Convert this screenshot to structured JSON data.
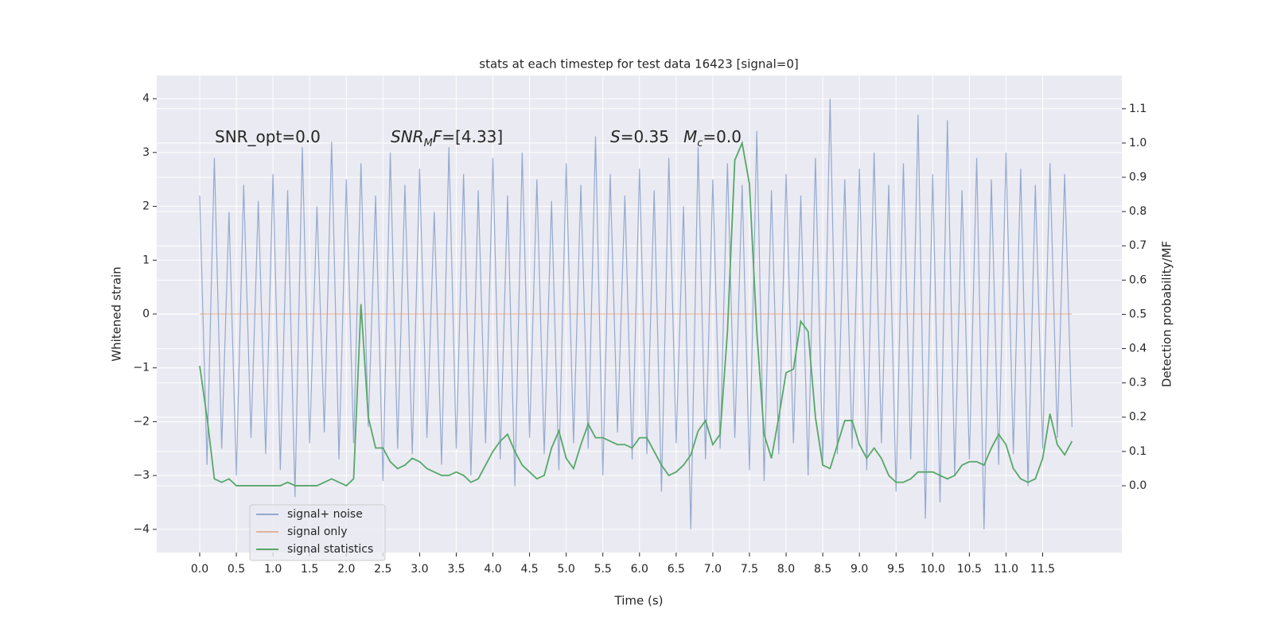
{
  "chart_data": {
    "type": "line",
    "title": "stats at each timestep for test data 16423 [signal=0]",
    "xlabel": "Time (s)",
    "ylabel": "Whitened strain",
    "y2label": "Detection probability/MF",
    "x": [
      0,
      0.1,
      0.2,
      0.3,
      0.4,
      0.5,
      0.6,
      0.7,
      0.8,
      0.9,
      1.0,
      1.1,
      1.2,
      1.3,
      1.4,
      1.5,
      1.6,
      1.7,
      1.8,
      1.9,
      2.0,
      2.1,
      2.2,
      2.3,
      2.4,
      2.5,
      2.6,
      2.7,
      2.8,
      2.9,
      3.0,
      3.1,
      3.2,
      3.3,
      3.4,
      3.5,
      3.6,
      3.7,
      3.8,
      3.9,
      4.0,
      4.1,
      4.2,
      4.3,
      4.4,
      4.5,
      4.6,
      4.7,
      4.8,
      4.9,
      5.0,
      5.1,
      5.2,
      5.3,
      5.4,
      5.5,
      5.6,
      5.7,
      5.8,
      5.9,
      6.0,
      6.1,
      6.2,
      6.3,
      6.4,
      6.5,
      6.6,
      6.7,
      6.8,
      6.9,
      7.0,
      7.1,
      7.2,
      7.3,
      7.4,
      7.5,
      7.6,
      7.7,
      7.8,
      7.9,
      8.0,
      8.1,
      8.2,
      8.3,
      8.4,
      8.5,
      8.6,
      8.7,
      8.8,
      8.9,
      9.0,
      9.1,
      9.2,
      9.3,
      9.4,
      9.5,
      9.6,
      9.7,
      9.8,
      9.9,
      10.0,
      10.1,
      10.2,
      10.3,
      10.4,
      10.5,
      10.6,
      10.7,
      10.8,
      10.9,
      11.0,
      11.1,
      11.2,
      11.3,
      11.4,
      11.5,
      11.6,
      11.7,
      11.8,
      11.9
    ],
    "series": [
      {
        "name": "signal+ noise",
        "color": "#4c72b0",
        "opacity": 0.55,
        "values": [
          2.2,
          -2.8,
          2.9,
          -2.5,
          1.9,
          -3.0,
          2.4,
          -2.3,
          2.1,
          -2.6,
          2.6,
          -2.9,
          2.3,
          -3.4,
          3.1,
          -2.4,
          2.0,
          -2.2,
          3.2,
          -2.7,
          2.5,
          -2.4,
          2.8,
          -2.1,
          2.2,
          -3.1,
          3.0,
          -2.5,
          2.4,
          -2.6,
          2.7,
          -2.3,
          1.9,
          -2.8,
          3.1,
          -2.5,
          2.6,
          -3.0,
          2.3,
          -2.4,
          2.9,
          -2.7,
          2.2,
          -3.2,
          3.0,
          -2.3,
          2.5,
          -2.6,
          2.1,
          -2.9,
          2.8,
          -2.4,
          2.4,
          -2.5,
          3.3,
          -3.0,
          2.6,
          -2.2,
          2.2,
          -2.7,
          2.7,
          -2.6,
          2.3,
          -3.3,
          2.9,
          -2.4,
          2.0,
          -4.0,
          3.1,
          -2.7,
          2.5,
          -2.5,
          2.8,
          -2.3,
          2.4,
          -2.9,
          3.4,
          -3.1,
          2.3,
          -2.6,
          2.6,
          -2.4,
          2.2,
          -3.0,
          2.9,
          -2.8,
          4.0,
          -2.6,
          2.5,
          -2.5,
          2.7,
          -2.9,
          3.0,
          -2.4,
          2.4,
          -3.3,
          2.8,
          -2.7,
          3.7,
          -3.8,
          2.6,
          -3.5,
          3.6,
          -3.0,
          2.3,
          -2.7,
          2.9,
          -4.0,
          2.5,
          -2.8,
          3.0,
          -2.6,
          2.7,
          -3.2,
          2.4,
          -2.5,
          2.8,
          -2.3,
          2.6,
          -2.1
        ]
      },
      {
        "name": "signal only",
        "color": "#dd8452",
        "opacity": 0.55,
        "values": [
          0,
          0,
          0,
          0,
          0,
          0,
          0,
          0,
          0,
          0,
          0,
          0,
          0,
          0,
          0,
          0,
          0,
          0,
          0,
          0,
          0,
          0,
          0,
          0,
          0,
          0,
          0,
          0,
          0,
          0,
          0,
          0,
          0,
          0,
          0,
          0,
          0,
          0,
          0,
          0,
          0,
          0,
          0,
          0,
          0,
          0,
          0,
          0,
          0,
          0,
          0,
          0,
          0,
          0,
          0,
          0,
          0,
          0,
          0,
          0,
          0,
          0,
          0,
          0,
          0,
          0,
          0,
          0,
          0,
          0,
          0,
          0,
          0,
          0,
          0,
          0,
          0,
          0,
          0,
          0,
          0,
          0,
          0,
          0,
          0,
          0,
          0,
          0,
          0,
          0,
          0,
          0,
          0,
          0,
          0,
          0,
          0,
          0,
          0,
          0,
          0,
          0,
          0,
          0,
          0,
          0,
          0,
          0,
          0,
          0,
          0,
          0,
          0,
          0,
          0,
          0,
          0,
          0,
          0,
          0
        ]
      },
      {
        "name": "signal statistics",
        "color": "#55a868",
        "opacity": 1,
        "axis": "y2",
        "values": [
          0.35,
          0.2,
          0.02,
          0.01,
          0.02,
          0.0,
          0.0,
          0.0,
          0.0,
          0.0,
          0.0,
          0.0,
          0.01,
          0.0,
          0.0,
          0.0,
          0.0,
          0.01,
          0.02,
          0.01,
          0.0,
          0.02,
          0.53,
          0.2,
          0.11,
          0.11,
          0.07,
          0.05,
          0.06,
          0.08,
          0.07,
          0.05,
          0.04,
          0.03,
          0.03,
          0.04,
          0.03,
          0.01,
          0.02,
          0.06,
          0.1,
          0.13,
          0.15,
          0.1,
          0.06,
          0.04,
          0.02,
          0.03,
          0.11,
          0.16,
          0.08,
          0.05,
          0.12,
          0.18,
          0.14,
          0.14,
          0.13,
          0.12,
          0.12,
          0.11,
          0.14,
          0.14,
          0.1,
          0.06,
          0.03,
          0.04,
          0.06,
          0.09,
          0.16,
          0.19,
          0.12,
          0.15,
          0.45,
          0.95,
          1.0,
          0.88,
          0.45,
          0.15,
          0.08,
          0.2,
          0.33,
          0.34,
          0.48,
          0.45,
          0.2,
          0.06,
          0.05,
          0.12,
          0.19,
          0.19,
          0.12,
          0.08,
          0.11,
          0.08,
          0.03,
          0.01,
          0.01,
          0.02,
          0.04,
          0.04,
          0.04,
          0.03,
          0.02,
          0.03,
          0.06,
          0.07,
          0.07,
          0.06,
          0.11,
          0.15,
          0.12,
          0.05,
          0.02,
          0.01,
          0.02,
          0.08,
          0.21,
          0.12,
          0.09,
          0.13
        ]
      }
    ],
    "xlim": [
      -0.586,
      12.58
    ],
    "xticks": [
      {
        "value": 0,
        "label": "0.0"
      },
      0.5,
      {
        "value": 1,
        "label": "1.0"
      },
      1.5,
      {
        "value": 2,
        "label": "2.0"
      },
      2.5,
      {
        "value": 3,
        "label": "3.0"
      },
      3.5,
      {
        "value": 4,
        "label": "4.0"
      },
      4.5,
      {
        "value": 5,
        "label": "5.0"
      },
      5.5,
      {
        "value": 6,
        "label": "6.0"
      },
      6.5,
      {
        "value": 7,
        "label": "7.0"
      },
      7.5,
      {
        "value": 8,
        "label": "8.0"
      },
      8.5,
      {
        "value": 9,
        "label": "9.0"
      },
      9.5,
      {
        "value": 10,
        "label": "10.0"
      },
      10.5,
      {
        "value": 11,
        "label": "11.0"
      },
      11.5
    ],
    "ylim": [
      -4.43,
      4.43
    ],
    "yticks": [
      {
        "value": -4,
        "label": "−4"
      },
      {
        "value": -3,
        "label": "−3"
      },
      {
        "value": -2,
        "label": "−2"
      },
      {
        "value": -1,
        "label": "−1"
      },
      0,
      1,
      2,
      3,
      4
    ],
    "y2lim": [
      -0.195,
      1.197
    ],
    "y2ticks": [
      {
        "value": 0,
        "label": "0.0"
      },
      0.1,
      0.2,
      0.3,
      0.4,
      0.5,
      0.6,
      0.7,
      0.8,
      0.9,
      {
        "value": 1,
        "label": "1.0"
      },
      1.1
    ],
    "grid": true,
    "legend": "lower left",
    "annotations": [
      [
        {
          "text": "SNR_opt=0.0"
        }
      ],
      [
        {
          "text": "SNR",
          "italic": true
        },
        {
          "text": "M",
          "italic": true,
          "sub": true
        },
        {
          "text": "F",
          "italic": true
        },
        {
          "text": "=[4.33]"
        }
      ],
      [
        {
          "text": "S",
          "italic": true
        },
        {
          "text": "=0.35"
        }
      ],
      [
        {
          "text": "M",
          "italic": true
        },
        {
          "text": "c",
          "italic": true,
          "sub": true
        },
        {
          "text": "=0.0"
        }
      ]
    ]
  }
}
